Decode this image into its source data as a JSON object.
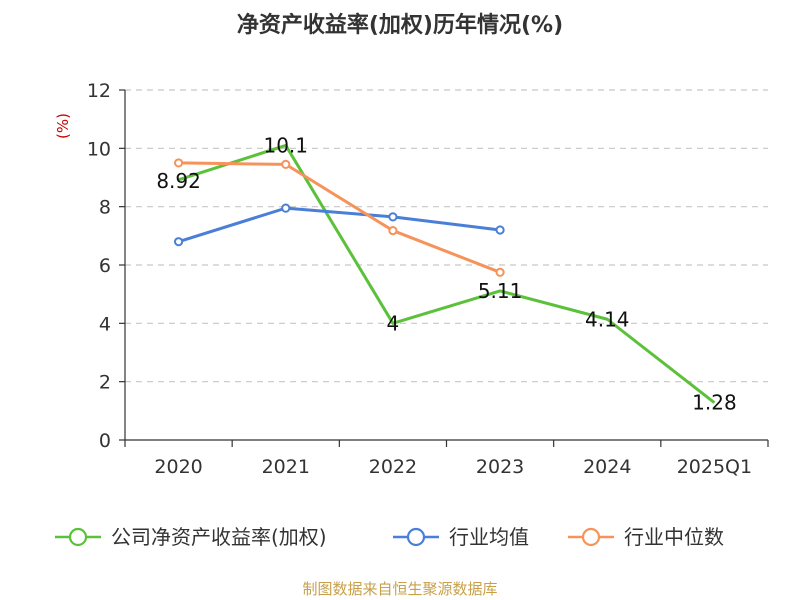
{
  "title": "净资产收益率(加权)历年情况(%)",
  "source": "制图数据来自恒生聚源数据库",
  "colors": {
    "company": "#5cc13a",
    "industry_avg": "#4a7fd8",
    "industry_median": "#f6935a",
    "grid": "#c8c8c8",
    "axis": "#333333"
  },
  "chart_data": {
    "type": "line",
    "title": "净资产收益率(加权)历年情况(%)",
    "ylabel": "(%)",
    "xlabel": "",
    "ylim": [
      0,
      12
    ],
    "yticks": [
      "0",
      "2",
      "4",
      "6",
      "8",
      "10",
      "12"
    ],
    "grid": true,
    "legend_position": "bottom",
    "categories": [
      "2020",
      "2021",
      "2022",
      "2023",
      "2024",
      "2025Q1"
    ],
    "series": [
      {
        "name": "公司净资产收益率(加权)",
        "values": [
          8.92,
          10.1,
          4,
          5.11,
          4.14,
          1.28
        ],
        "labels": [
          "8.92",
          "10.1",
          "4",
          "5.11",
          "4.14",
          "1.28"
        ],
        "show_markers": false
      },
      {
        "name": "行业均值",
        "values": [
          6.8,
          7.95,
          7.65,
          7.2,
          null,
          null
        ],
        "show_markers": true
      },
      {
        "name": "行业中位数",
        "values": [
          9.5,
          9.45,
          7.18,
          5.75,
          null,
          null
        ],
        "show_markers": true
      }
    ]
  }
}
